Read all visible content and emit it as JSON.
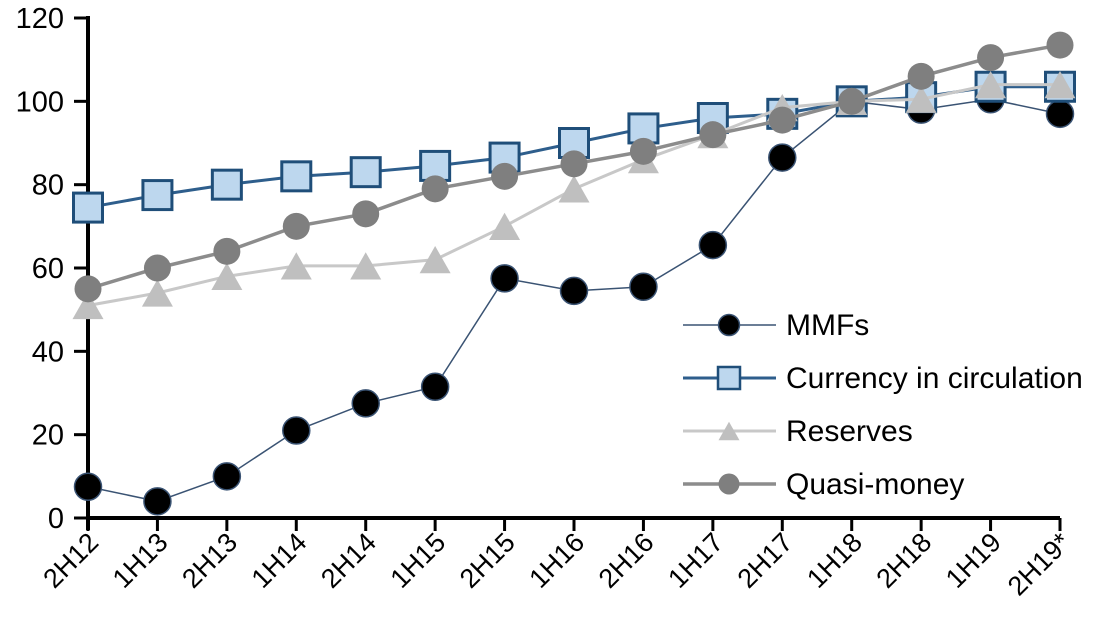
{
  "chart_data": {
    "type": "line",
    "title": "",
    "xlabel": "",
    "ylabel": "",
    "categories": [
      "2H12",
      "1H13",
      "2H13",
      "1H14",
      "2H14",
      "1H15",
      "2H15",
      "1H16",
      "2H16",
      "1H17",
      "2H17",
      "1H18",
      "2H18",
      "1H19",
      "2H19*"
    ],
    "y_axis": {
      "min": 0,
      "max": 120,
      "step": 20,
      "ticks": [
        0,
        20,
        40,
        60,
        80,
        100,
        120
      ]
    },
    "grid": false,
    "axis_color": "#000000",
    "legend": {
      "position": "middle-right",
      "entries": [
        "MMFs",
        "Currency in circulation",
        "Reserves",
        "Quasi-money"
      ]
    },
    "series": [
      {
        "name": "MMFs",
        "marker": "circle",
        "marker_fill": "#000000",
        "marker_edge": "#3A5373",
        "line_color": "#3A5373",
        "line_width": 1.5,
        "marker_size": 27,
        "values": [
          7.5,
          4,
          10,
          21,
          27.5,
          31.5,
          57.5,
          54.5,
          55.5,
          65.5,
          86.5,
          100,
          98,
          100.5,
          97
        ]
      },
      {
        "name": "Currency in circulation",
        "marker": "square",
        "marker_fill": "#BDD7EE",
        "marker_edge": "#1F4E79",
        "line_color": "#2E5E8C",
        "line_width": 3,
        "marker_size": 29,
        "values": [
          74.5,
          77.5,
          80,
          82,
          83,
          84.5,
          86.5,
          90,
          93.5,
          96,
          97,
          100,
          101,
          103.5,
          103.5
        ]
      },
      {
        "name": "Reserves",
        "marker": "triangle",
        "marker_fill": "#BFBFBF",
        "marker_edge": "none",
        "line_color": "#C8C8C8",
        "line_width": 3,
        "marker_size": 31,
        "values": [
          51,
          54,
          58,
          60.5,
          60.5,
          62,
          70,
          79,
          86,
          92,
          98.5,
          100,
          100.5,
          104,
          104
        ]
      },
      {
        "name": "Quasi-money",
        "marker": "circle",
        "marker_fill": "#7F7F7F",
        "marker_edge": "none",
        "line_color": "#8C8C8C",
        "line_width": 3.5,
        "marker_size": 27,
        "values": [
          55,
          60,
          64,
          70,
          73,
          79,
          82,
          85,
          88,
          92,
          95.5,
          100,
          106,
          110.5,
          113.5
        ]
      }
    ]
  }
}
